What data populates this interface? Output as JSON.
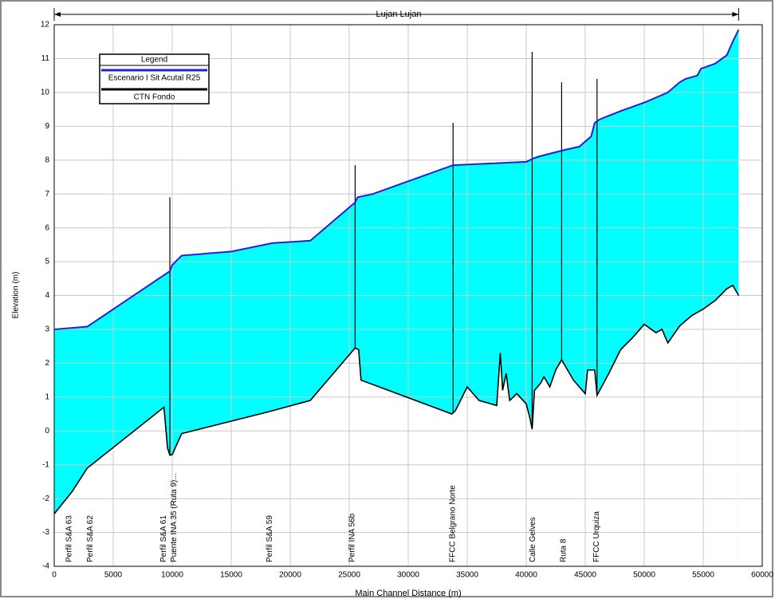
{
  "chart_data": {
    "type": "line",
    "title": "Lujan Lujan",
    "xlabel": "Main Channel Distance (m)",
    "ylabel": "Elevation (m)",
    "legend_title": "Legend",
    "xlim": [
      0,
      60000
    ],
    "ylim": [
      -4,
      12
    ],
    "xticks": [
      0,
      5000,
      10000,
      15000,
      20000,
      25000,
      30000,
      35000,
      40000,
      45000,
      50000,
      55000,
      60000
    ],
    "yticks": [
      -4,
      -3,
      -2,
      -1,
      0,
      1,
      2,
      3,
      4,
      5,
      6,
      7,
      8,
      9,
      10,
      11,
      12
    ],
    "grid": true,
    "fill_color": "#00ffff",
    "reach_extent": [
      0,
      58000
    ],
    "series": [
      {
        "name": "Escenario I Sit Acutal R25",
        "color": "#2020d8",
        "x": [
          0,
          2800,
          9800,
          10000,
          10800,
          15000,
          18500,
          21700,
          25500,
          25700,
          27000,
          33800,
          40000,
          40600,
          41000,
          43000,
          44500,
          45500,
          45800,
          46200,
          48000,
          50000,
          52000,
          53000,
          53500,
          54500,
          54800,
          56000,
          57000,
          57500,
          58000
        ],
        "values": [
          3.0,
          3.08,
          4.72,
          4.9,
          5.18,
          5.3,
          5.55,
          5.62,
          6.75,
          6.9,
          7.0,
          7.85,
          7.95,
          8.05,
          8.1,
          8.28,
          8.4,
          8.7,
          9.1,
          9.2,
          9.45,
          9.7,
          10.0,
          10.3,
          10.4,
          10.5,
          10.7,
          10.85,
          11.1,
          11.5,
          11.85
        ]
      },
      {
        "name": "CTN Fondo",
        "color": "#000000",
        "x": [
          0,
          1500,
          2800,
          9300,
          9600,
          9800,
          10000,
          10800,
          18000,
          21700,
          25500,
          25800,
          26000,
          33700,
          34000,
          35000,
          36000,
          37500,
          37800,
          38000,
          38300,
          38600,
          39200,
          40000,
          40300,
          40500,
          40700,
          41200,
          41500,
          42000,
          42500,
          43000,
          44000,
          45000,
          45200,
          45800,
          46000,
          47000,
          48000,
          49000,
          50000,
          51000,
          51500,
          52000,
          53000,
          54000,
          55000,
          56000,
          57000,
          57500,
          58000
        ],
        "values": [
          -2.45,
          -1.8,
          -1.1,
          0.7,
          -0.5,
          -0.72,
          -0.7,
          -0.08,
          0.55,
          0.9,
          2.45,
          2.4,
          1.5,
          0.5,
          0.6,
          1.3,
          0.9,
          0.75,
          2.3,
          1.2,
          1.7,
          0.9,
          1.1,
          0.8,
          0.4,
          0.05,
          1.2,
          1.4,
          1.6,
          1.3,
          1.8,
          2.1,
          1.5,
          1.1,
          1.8,
          1.8,
          1.05,
          1.7,
          2.4,
          2.75,
          3.15,
          2.9,
          3.0,
          2.6,
          3.1,
          3.4,
          3.6,
          3.85,
          4.2,
          4.3,
          4.0
        ]
      }
    ],
    "structures": {
      "x": [
        9800,
        25500,
        33800,
        40500,
        43000,
        46000
      ],
      "top": [
        6.9,
        7.85,
        9.1,
        11.2,
        10.3,
        10.4
      ]
    },
    "stations": {
      "labels": [
        "Perfil S&A 63",
        "Perfil S&A 62",
        "Perfil S&A 61",
        "Puente INA 35 (Ruta 9)...",
        "Perfil S&A 59",
        "Perfil INA 56b",
        "FFCC Belgrano Norte",
        "Calle Gelves",
        "Ruta 8",
        "FFCC Urquiza"
      ],
      "x": [
        1000,
        2800,
        9000,
        9900,
        18000,
        25000,
        33500,
        40300,
        42900,
        45700
      ]
    }
  }
}
